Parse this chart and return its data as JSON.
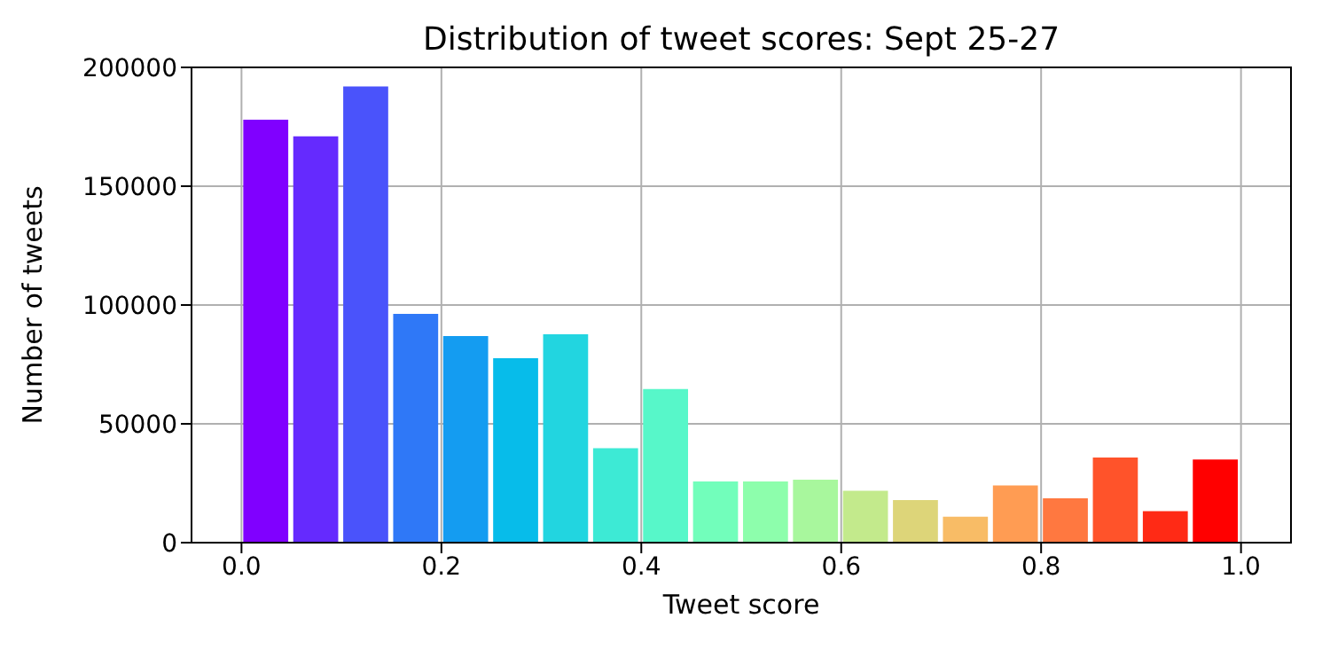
{
  "chart_data": {
    "type": "histogram",
    "title": "Distribution of tweet scores: Sept 25-27",
    "xlabel": "Tweet score",
    "ylabel": "Number of tweets",
    "bins": [
      0,
      0.05,
      0.1,
      0.15,
      0.2,
      0.25,
      0.3,
      0.35,
      0.4,
      0.45,
      0.5,
      0.55,
      0.6,
      0.65,
      0.7,
      0.75,
      0.8,
      0.85,
      0.9,
      0.95,
      1.0
    ],
    "values": [
      178000,
      171000,
      192000,
      96300,
      86900,
      77600,
      87700,
      39700,
      64600,
      25700,
      25700,
      26500,
      21800,
      17900,
      10900,
      24100,
      18700,
      35800,
      13200,
      35000
    ],
    "colors": [
      "#8000ff",
      "#652afe",
      "#4a53fb",
      "#2f78f7",
      "#149cf1",
      "#07bcea",
      "#22d5e0",
      "#3dead5",
      "#57f7c9",
      "#72febb",
      "#8dfeac",
      "#a8f79d",
      "#c3ea8c",
      "#ddd579",
      "#f8bc66",
      "#ff9c53",
      "#ff7840",
      "#ff532a",
      "#ff2a15",
      "#ff0000"
    ],
    "xlim": [
      -0.05,
      1.05
    ],
    "xticks": [
      {
        "value": 0,
        "label": "0.0"
      },
      {
        "value": 0.2,
        "label": "0.2"
      },
      {
        "value": 0.4,
        "label": "0.4"
      },
      {
        "value": 0.6,
        "label": "0.6"
      },
      {
        "value": 0.8,
        "label": "0.8"
      },
      {
        "value": 1.0,
        "label": "1.0"
      }
    ],
    "ylim": [
      0,
      200000
    ],
    "yticks": [
      0,
      50000,
      100000,
      150000,
      200000
    ],
    "grid": true
  }
}
